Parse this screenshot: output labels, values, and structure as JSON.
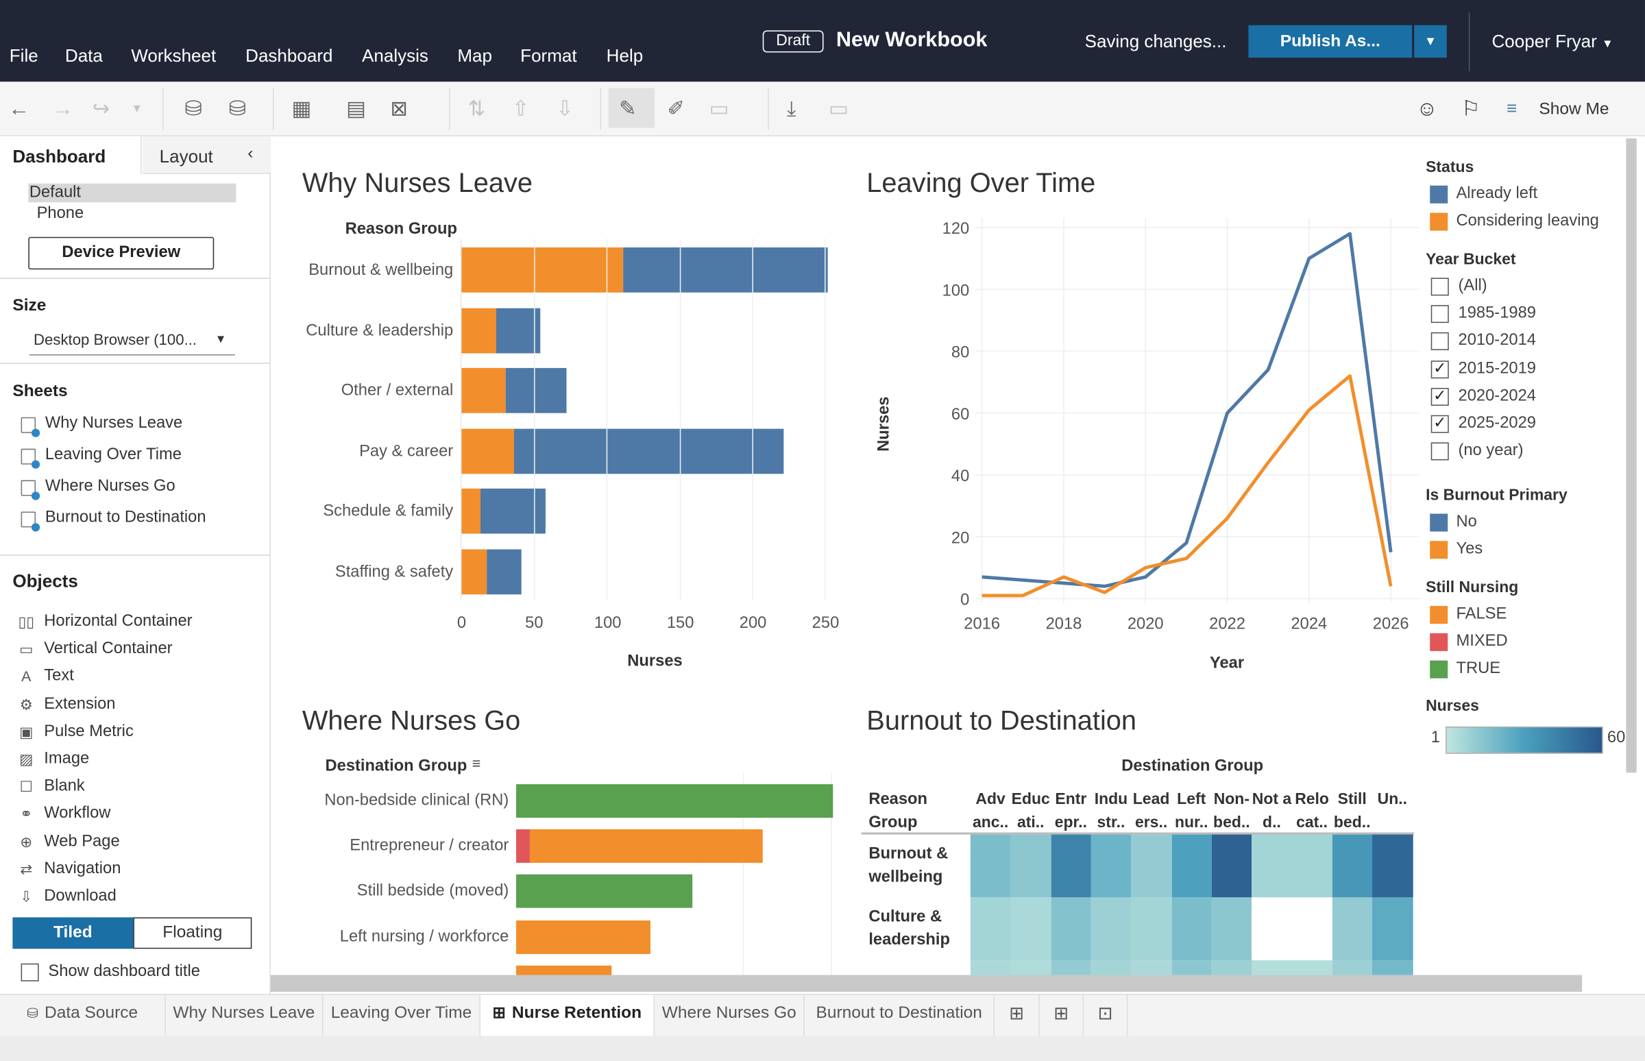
{
  "menu": [
    "File",
    "Data",
    "Worksheet",
    "Dashboard",
    "Analysis",
    "Map",
    "Format",
    "Help"
  ],
  "header": {
    "draft_badge": "Draft",
    "workbook_title": "New Workbook",
    "status": "Saving changes...",
    "publish_label": "Publish As...",
    "user": "Cooper Fryar"
  },
  "toolbar": {
    "show_me": "Show Me"
  },
  "left_panel": {
    "tabs": [
      "Dashboard",
      "Layout"
    ],
    "device_options": [
      "Default",
      "Phone"
    ],
    "device_preview": "Device Preview",
    "size_heading": "Size",
    "size_value": "Desktop Browser (100...",
    "sheets_heading": "Sheets",
    "sheets": [
      "Why Nurses Leave",
      "Leaving Over Time",
      "Where Nurses Go",
      "Burnout to Destination"
    ],
    "objects_heading": "Objects",
    "objects": [
      {
        "label": "Horizontal Container",
        "icon": "horizontal-container-icon"
      },
      {
        "label": "Vertical Container",
        "icon": "vertical-container-icon"
      },
      {
        "label": "Text",
        "icon": "text-icon"
      },
      {
        "label": "Extension",
        "icon": "extension-icon"
      },
      {
        "label": "Pulse Metric",
        "icon": "pulse-metric-icon"
      },
      {
        "label": "Image",
        "icon": "image-icon"
      },
      {
        "label": "Blank",
        "icon": "blank-icon"
      },
      {
        "label": "Workflow",
        "icon": "workflow-icon"
      },
      {
        "label": "Web Page",
        "icon": "web-page-icon"
      },
      {
        "label": "Navigation",
        "icon": "navigation-icon"
      },
      {
        "label": "Download",
        "icon": "download-icon"
      }
    ],
    "tiled": "Tiled",
    "floating": "Floating",
    "show_title": "Show dashboard title"
  },
  "colors": {
    "already_left": "#4e79a7",
    "considering": "#f28e2b",
    "mixed": "#e15759",
    "true": "#59a14f",
    "topbar": "#212637",
    "publish": "#1a6fa5"
  },
  "legend": {
    "status_title": "Status",
    "status_items": [
      "Already left",
      "Considering leaving"
    ],
    "year_title": "Year Bucket",
    "year_items": [
      {
        "label": "(All)",
        "checked": false
      },
      {
        "label": "1985-1989",
        "checked": false
      },
      {
        "label": "2010-2014",
        "checked": false
      },
      {
        "label": "2015-2019",
        "checked": true
      },
      {
        "label": "2020-2024",
        "checked": true
      },
      {
        "label": "2025-2029",
        "checked": true
      },
      {
        "label": "(no year)",
        "checked": false
      }
    ],
    "burnout_title": "Is Burnout Primary",
    "burnout_items": [
      "No",
      "Yes"
    ],
    "still_title": "Still Nursing",
    "still_items": [
      "FALSE",
      "MIXED",
      "TRUE"
    ],
    "nurses_title": "Nurses",
    "nurses_min": "1",
    "nurses_max": "60"
  },
  "chart_data": [
    {
      "type": "bar",
      "title": "Why Nurses Leave",
      "y_header": "Reason Group",
      "xlabel": "Nurses",
      "categories": [
        "Burnout & wellbeing",
        "Culture & leadership",
        "Other / external",
        "Pay & career",
        "Schedule & family",
        "Staffing & safety"
      ],
      "series": [
        {
          "name": "Considering leaving",
          "values": [
            111,
            24,
            30,
            36,
            13,
            17
          ]
        },
        {
          "name": "Already left",
          "values": [
            141,
            30,
            42,
            186,
            45,
            24
          ]
        }
      ],
      "xlim": [
        0,
        250
      ],
      "xticks": [
        "0",
        "50",
        "100",
        "150",
        "200",
        "250"
      ]
    },
    {
      "type": "line",
      "title": "Leaving Over Time",
      "xlabel": "Year",
      "ylabel": "Nurses",
      "x": [
        2016,
        2017,
        2018,
        2019,
        2020,
        2021,
        2022,
        2023,
        2024,
        2025,
        2026
      ],
      "series": [
        {
          "name": "Already left",
          "values": [
            7,
            6,
            5,
            4,
            7,
            18,
            60,
            74,
            110,
            118,
            15
          ]
        },
        {
          "name": "Considering leaving",
          "values": [
            1,
            1,
            7,
            2,
            10,
            13,
            26,
            44,
            61,
            72,
            4
          ]
        }
      ],
      "ylim": [
        0,
        120
      ],
      "yticks": [
        "0",
        "20",
        "40",
        "60",
        "80",
        "100",
        "120"
      ],
      "xticks": [
        "2016",
        "2018",
        "2020",
        "2022",
        "2024",
        "2026"
      ]
    },
    {
      "type": "bar",
      "title": "Where Nurses Go",
      "y_header": "Destination Group",
      "categories": [
        "Non-bedside clinical (RN)",
        "Entrepreneur / creator",
        "Still bedside (moved)",
        "Left nursing / workforce",
        ""
      ],
      "series": [
        {
          "name": "MIXED",
          "values": [
            0,
            4,
            0,
            0,
            0
          ]
        },
        {
          "name": "FALSE",
          "values": [
            0,
            66,
            0,
            38,
            27
          ]
        },
        {
          "name": "TRUE",
          "values": [
            90,
            0,
            50,
            0,
            0
          ]
        }
      ],
      "xlim": [
        0,
        90
      ]
    },
    {
      "type": "heatmap",
      "title": "Burnout to Destination",
      "col_header": "Destination Group",
      "row_header": "Reason Group",
      "columns": [
        "Adv anc..",
        "Educ ati..",
        "Entr epr..",
        "Indu str..",
        "Lead ers..",
        "Left nur..",
        "Non- bed..",
        "Not a d..",
        "Relo cat..",
        "Still bed..",
        "Un.."
      ],
      "rows": [
        "Burnout & wellbeing",
        "Culture & leadership",
        ""
      ],
      "values": [
        [
          18,
          14,
          42,
          22,
          12,
          30,
          56,
          8,
          8,
          34,
          54
        ],
        [
          8,
          6,
          16,
          10,
          8,
          18,
          14,
          null,
          null,
          12,
          26
        ],
        [
          6,
          5,
          12,
          8,
          6,
          14,
          10,
          4,
          4,
          10,
          20
        ]
      ]
    }
  ],
  "tabs": [
    "Data Source",
    "Why Nurses Leave",
    "Leaving Over Time",
    "Nurse Retention",
    "Where Nurses Go",
    "Burnout to Destination"
  ],
  "active_tab": "Nurse Retention"
}
